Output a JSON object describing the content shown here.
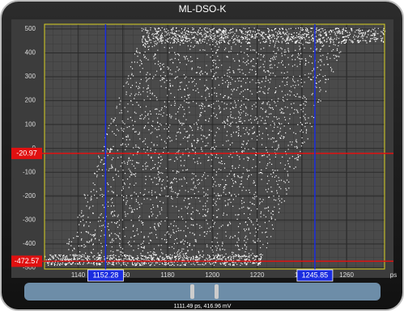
{
  "title": "ML-DSO-K",
  "xlim": [
    1125,
    1277
  ],
  "ylim": [
    -505,
    520
  ],
  "xticks": [
    1140,
    1160,
    1180,
    1200,
    1220,
    1240,
    1260
  ],
  "yticks": [
    500,
    400,
    300,
    200,
    100,
    0,
    -100,
    -200,
    -300,
    -400,
    -500
  ],
  "x_unit": "ps",
  "h_cursors": [
    -20.97,
    -472.57
  ],
  "v_cursors": [
    1152.28,
    1245.85
  ],
  "readout": "1111.49 ps, 416.96 mV"
}
